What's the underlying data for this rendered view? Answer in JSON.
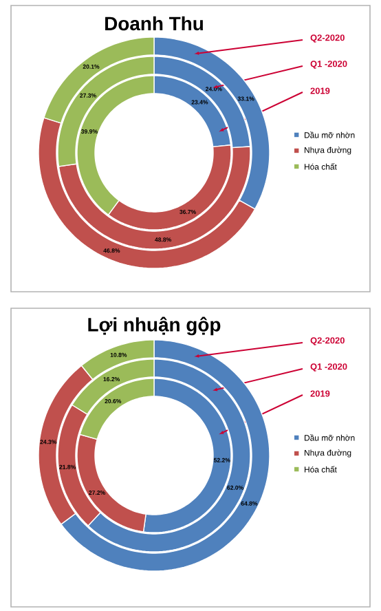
{
  "chart_data": [
    {
      "type": "donut",
      "title": "Doanh Thu",
      "categories": [
        "Dầu mỡ nhờn",
        "Nhựa đường",
        "Hóa chất"
      ],
      "colors": [
        "#4f81bd",
        "#c0504d",
        "#9bbb59"
      ],
      "legend": "right",
      "series": [
        {
          "name": "2019",
          "values": [
            23.4,
            36.7,
            39.9
          ],
          "value_labels": [
            "23.4%",
            "36.7%",
            "39.9%"
          ]
        },
        {
          "name": "Q1 -2020",
          "values": [
            24.0,
            48.8,
            27.3
          ],
          "value_labels": [
            "24.0%",
            "48.8%",
            "27.3%"
          ]
        },
        {
          "name": "Q2-2020",
          "values": [
            33.1,
            46.8,
            20.1
          ],
          "value_labels": [
            "33.1%",
            "46.8%",
            "20.1%"
          ]
        }
      ]
    },
    {
      "type": "donut",
      "title": "Lợi nhuận gộp",
      "categories": [
        "Dầu mỡ nhờn",
        "Nhựa đường",
        "Hóa chất"
      ],
      "colors": [
        "#4f81bd",
        "#c0504d",
        "#9bbb59"
      ],
      "legend": "right",
      "series": [
        {
          "name": "2019",
          "values": [
            52.2,
            27.2,
            20.6
          ],
          "value_labels": [
            "52.2%",
            "27.2%",
            "20.6%"
          ]
        },
        {
          "name": "Q1 -2020",
          "values": [
            62.0,
            21.8,
            16.2
          ],
          "value_labels": [
            "62.0%",
            "21.8%",
            "16.2%"
          ]
        },
        {
          "name": "Q2-2020",
          "values": [
            64.8,
            24.3,
            10.8
          ],
          "value_labels": [
            "64.8%",
            "24.3%",
            "10.8%"
          ]
        }
      ]
    }
  ]
}
